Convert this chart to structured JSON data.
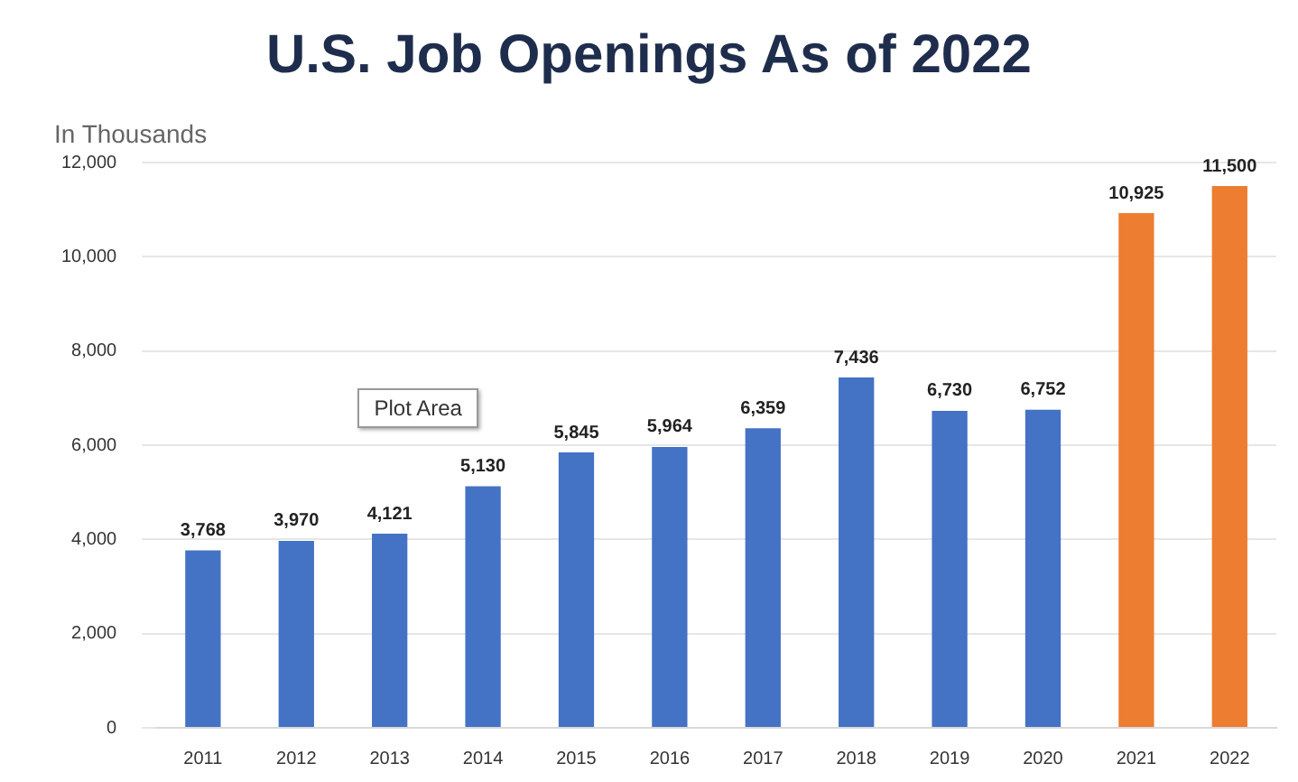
{
  "chart_data": {
    "type": "bar",
    "title": "U.S. Job Openings As of 2022",
    "ylabel": "In Thousands",
    "categories": [
      "2011",
      "2012",
      "2013",
      "2014",
      "2015",
      "2016",
      "2017",
      "2018",
      "2019",
      "2020",
      "2021",
      "2022"
    ],
    "values": [
      3768,
      3970,
      4121,
      5130,
      5845,
      5964,
      6359,
      7436,
      6730,
      6752,
      10925,
      11500
    ],
    "colors": [
      "#4472c4",
      "#4472c4",
      "#4472c4",
      "#4472c4",
      "#4472c4",
      "#4472c4",
      "#4472c4",
      "#4472c4",
      "#4472c4",
      "#4472c4",
      "#ed7d31",
      "#ed7d31"
    ],
    "ylim": [
      0,
      12000
    ],
    "yticks": [
      {
        "value": 0,
        "label": "0"
      },
      {
        "value": 2000,
        "label": "2,000"
      },
      {
        "value": 4000,
        "label": "4,000"
      },
      {
        "value": 6000,
        "label": "6,000"
      },
      {
        "value": 8000,
        "label": "8,000"
      },
      {
        "value": 10000,
        "label": "10,000"
      },
      {
        "value": 12000,
        "label": "12,000"
      }
    ],
    "value_labels": [
      "3,768",
      "3,970",
      "4,121",
      "5,130",
      "5,845",
      "5,964",
      "6,359",
      "7,436",
      "6,730",
      "6,752",
      "10,925",
      "11,500"
    ],
    "grid": "y",
    "legend": false,
    "annotations": [
      "Plot Area"
    ]
  }
}
